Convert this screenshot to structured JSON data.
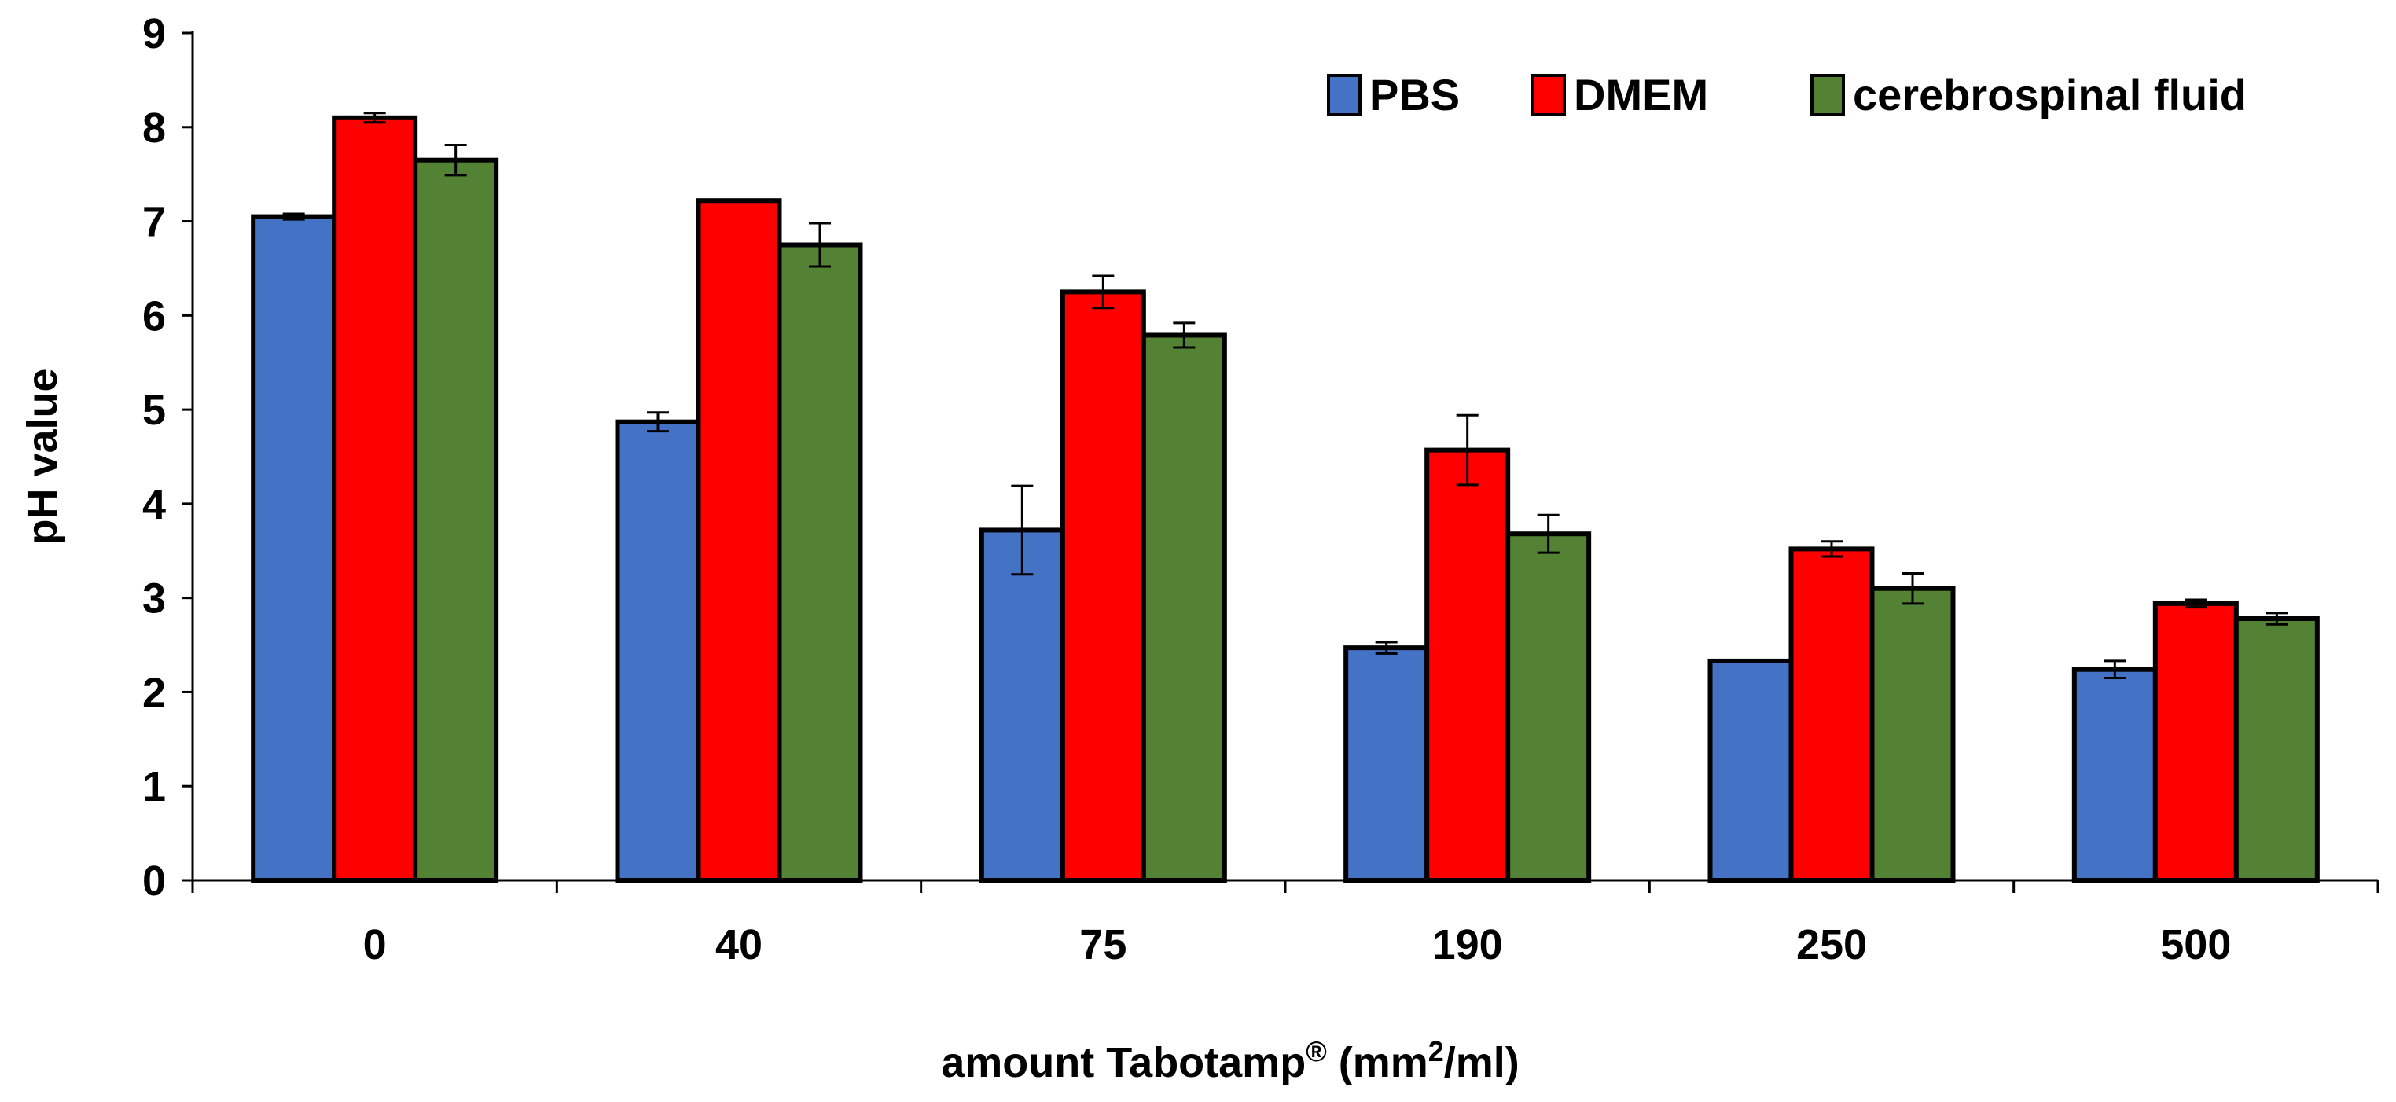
{
  "chart_data": {
    "type": "bar",
    "title": "",
    "xlabel": "amount Tabotamp",
    "xlabel_sup1": "®",
    "xlabel_unit_pre": " (mm",
    "xlabel_sup2": "2",
    "xlabel_unit_post": "/ml)",
    "ylabel": "pH value",
    "ylim": [
      0,
      9
    ],
    "yticks": [
      "0",
      "1",
      "2",
      "3",
      "4",
      "5",
      "6",
      "7",
      "8",
      "9"
    ],
    "categories": [
      "0",
      "40",
      "75",
      "190",
      "250",
      "500"
    ],
    "legend_position": "top-right",
    "series": [
      {
        "name": "PBS",
        "color": "#4472C4",
        "values": [
          7.05,
          4.87,
          3.72,
          2.47,
          2.33,
          2.24
        ],
        "errors": [
          0.03,
          0.1,
          0.47,
          0.06,
          0.0,
          0.09
        ]
      },
      {
        "name": "DMEM",
        "color": "#FF0000",
        "values": [
          8.1,
          7.22,
          6.25,
          4.57,
          3.52,
          2.94
        ],
        "errors": [
          0.05,
          0.0,
          0.17,
          0.37,
          0.08,
          0.04
        ]
      },
      {
        "name": "cerebrospinal fluid",
        "color": "#548235",
        "values": [
          7.65,
          6.75,
          5.79,
          3.68,
          3.1,
          2.78
        ],
        "errors": [
          0.16,
          0.23,
          0.13,
          0.2,
          0.16,
          0.06
        ]
      }
    ]
  }
}
